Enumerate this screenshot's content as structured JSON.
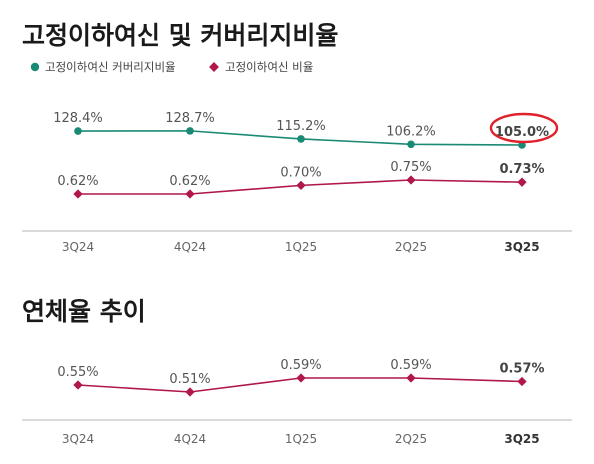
{
  "chart_data": [
    {
      "type": "line",
      "title": "고정이하여신 및 커버리지비율",
      "categories": [
        "3Q24",
        "4Q24",
        "1Q25",
        "2Q25",
        "3Q25"
      ],
      "legend": [
        "고정이하여신 커버리지비율",
        "고정이하여신 비율"
      ],
      "series": [
        {
          "name": "고정이하여신 커버리지비율",
          "values": [
            128.4,
            128.7,
            115.2,
            106.2,
            105.0
          ],
          "labels": [
            "128.4%",
            "128.7%",
            "115.2%",
            "106.2%",
            "105.0%"
          ],
          "color": "#1a8a74",
          "marker": "circle"
        },
        {
          "name": "고정이하여신 비율",
          "values": [
            0.62,
            0.62,
            0.7,
            0.75,
            0.73
          ],
          "labels": [
            "0.62%",
            "0.62%",
            "0.70%",
            "0.75%",
            "0.73%"
          ],
          "color": "#b0174a",
          "marker": "diamond"
        }
      ],
      "highlight_color": "#e0202a"
    },
    {
      "type": "line",
      "title": "연체율 추이",
      "categories": [
        "3Q24",
        "4Q24",
        "1Q25",
        "2Q25",
        "3Q25"
      ],
      "series": [
        {
          "values": [
            0.55,
            0.51,
            0.59,
            0.59,
            0.57
          ],
          "labels": [
            "0.55%",
            "0.51%",
            "0.59%",
            "0.59%",
            "0.57%"
          ],
          "color": "#b0174a",
          "marker": "diamond"
        }
      ]
    }
  ]
}
